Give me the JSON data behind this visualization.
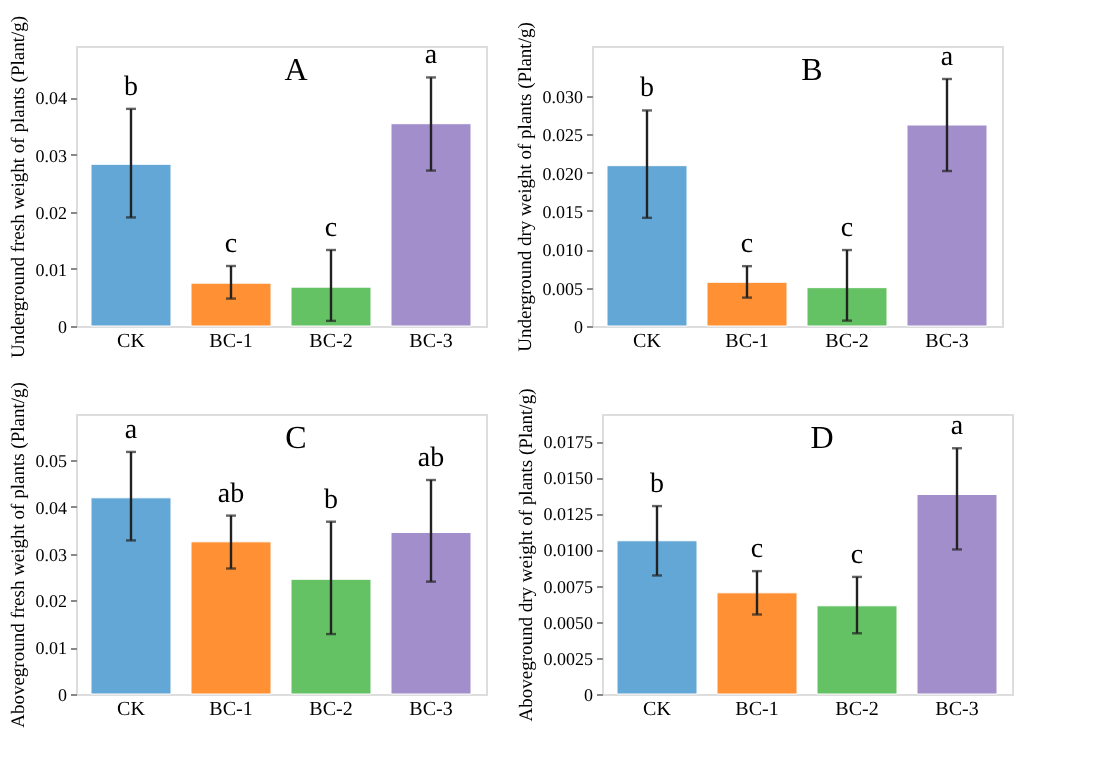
{
  "chart_data": [
    {
      "type": "bar",
      "title": "A",
      "ylabel": "Underground fresh weight of plants (Plant/g)",
      "categories": [
        "CK",
        "BC-1",
        "BC-2",
        "BC-3"
      ],
      "values": [
        0.0283,
        0.0075,
        0.0068,
        0.0354
      ],
      "colors": [
        "#5ba3d4",
        "#ff8c2a",
        "#5cbf5c",
        "#9d88c8"
      ],
      "errors": [
        [
          0.019,
          0.038
        ],
        [
          0.0048,
          0.0105
        ],
        [
          0.0009,
          0.0133
        ],
        [
          0.0272,
          0.0435
        ]
      ],
      "annotations": [
        {
          "text": "b",
          "x": "CK",
          "y": 0.038
        },
        {
          "text": "c",
          "x": "BC-1",
          "y": 0.0105
        },
        {
          "text": "c",
          "x": "BC-2",
          "y": 0.0133
        },
        {
          "text": "a",
          "x": "BC-3",
          "y": 0.0435
        }
      ],
      "ylim": [
        0,
        0.049
      ],
      "yticks": [
        0,
        0.01,
        0.02,
        0.03,
        0.04
      ],
      "grid": false,
      "legend": false
    },
    {
      "type": "bar",
      "title": "B",
      "ylabel": "Underground dry weight of plants (Plant/g)",
      "categories": [
        "CK",
        "BC-1",
        "BC-2",
        "BC-3"
      ],
      "values": [
        0.0209,
        0.0057,
        0.005,
        0.0262
      ],
      "colors": [
        "#5ba3d4",
        "#ff8c2a",
        "#5cbf5c",
        "#9d88c8"
      ],
      "errors": [
        [
          0.0141,
          0.0281
        ],
        [
          0.0037,
          0.0078
        ],
        [
          0.0007,
          0.0099
        ],
        [
          0.0202,
          0.0322
        ]
      ],
      "annotations": [
        {
          "text": "b",
          "x": "CK",
          "y": 0.0281
        },
        {
          "text": "c",
          "x": "BC-1",
          "y": 0.0078
        },
        {
          "text": "c",
          "x": "BC-2",
          "y": 0.0099
        },
        {
          "text": "a",
          "x": "BC-3",
          "y": 0.0322
        }
      ],
      "ylim": [
        0,
        0.0365
      ],
      "yticks": [
        0,
        0.005,
        {
          "value": 0.01,
          "label": "0.010"
        },
        0.015,
        {
          "value": 0.02,
          "label": "0.020"
        },
        0.025,
        {
          "value": 0.03,
          "label": "0.030"
        }
      ],
      "grid": false,
      "legend": false
    },
    {
      "type": "bar",
      "title": "C",
      "ylabel": "Aboveground fresh weight of plants (Plant/g)",
      "categories": [
        "CK",
        "BC-1",
        "BC-2",
        "BC-3"
      ],
      "values": [
        0.0419,
        0.0325,
        0.0245,
        0.0345
      ],
      "colors": [
        "#5ba3d4",
        "#ff8c2a",
        "#5cbf5c",
        "#9d88c8"
      ],
      "errors": [
        [
          0.0328,
          0.0517
        ],
        [
          0.0268,
          0.0381
        ],
        [
          0.0128,
          0.0368
        ],
        [
          0.024,
          0.0457
        ]
      ],
      "annotations": [
        {
          "text": "a",
          "x": "CK",
          "y": 0.0517
        },
        {
          "text": "ab",
          "x": "BC-1",
          "y": 0.0381
        },
        {
          "text": "b",
          "x": "BC-2",
          "y": 0.0368
        },
        {
          "text": "ab",
          "x": "BC-3",
          "y": 0.0457
        }
      ],
      "ylim": [
        0,
        0.0598
      ],
      "yticks": [
        0,
        0.01,
        0.02,
        0.03,
        0.04,
        0.05
      ],
      "grid": false,
      "legend": false
    },
    {
      "type": "bar",
      "title": "D",
      "ylabel": "Aboveground dry weight of plants (Plant/g)",
      "categories": [
        "CK",
        "BC-1",
        "BC-2",
        "BC-3"
      ],
      "values": [
        0.0106,
        0.007,
        0.0061,
        0.0138
      ],
      "colors": [
        "#5ba3d4",
        "#ff8c2a",
        "#5cbf5c",
        "#9d88c8"
      ],
      "errors": [
        [
          0.0082,
          0.013
        ],
        [
          0.0055,
          0.0085
        ],
        [
          0.0042,
          0.0081
        ],
        [
          0.01,
          0.017
        ]
      ],
      "annotations": [
        {
          "text": "b",
          "x": "CK",
          "y": 0.013
        },
        {
          "text": "c",
          "x": "BC-1",
          "y": 0.0085
        },
        {
          "text": "c",
          "x": "BC-2",
          "y": 0.0081
        },
        {
          "text": "a",
          "x": "BC-3",
          "y": 0.017
        }
      ],
      "ylim": [
        0,
        0.01937
      ],
      "yticks": [
        0,
        0.0025,
        {
          "value": 0.005,
          "label": "0.0050"
        },
        0.0075,
        {
          "value": 0.01,
          "label": "0.0100"
        },
        0.0125,
        {
          "value": 0.015,
          "label": "0.0150"
        },
        0.0175
      ],
      "grid": false,
      "legend": false
    }
  ]
}
